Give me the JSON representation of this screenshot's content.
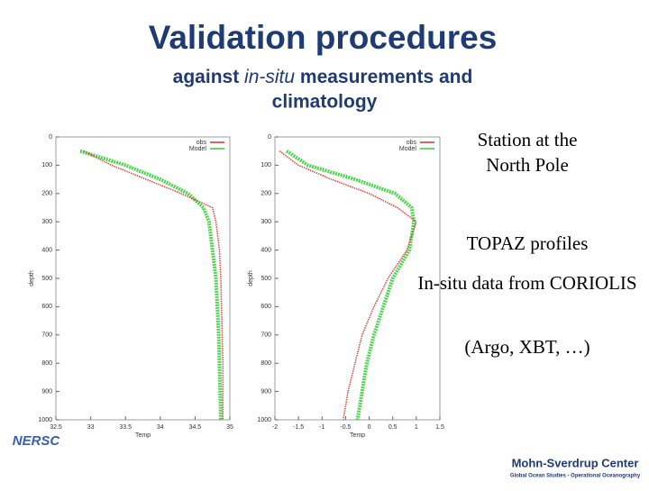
{
  "title": "Validation procedures",
  "subtitle": {
    "parts": [
      "against ",
      "in-situ",
      " measurements and"
    ],
    "line2": "climatology"
  },
  "notes": [
    "Station at the North Pole",
    "TOPAZ profiles",
    "In-situ data from CORIOLIS",
    "(Argo, XBT, …)"
  ],
  "logos": {
    "left": "NERSC",
    "right": "Mohn-Sverdrup Center",
    "right_sub": "Global Ocean Studies - Operational Oceanography"
  },
  "chart_data": [
    {
      "type": "line",
      "xlabel": "Temp",
      "ylabel": "depth",
      "depth": [
        50,
        100,
        150,
        200,
        250,
        300,
        400,
        500,
        600,
        700,
        800,
        900,
        1000
      ],
      "series": [
        {
          "name": "obs",
          "color": "#d03030",
          "values": [
            32.9,
            33.3,
            33.8,
            34.3,
            34.75,
            34.8,
            34.85,
            34.87,
            34.88,
            34.89,
            34.9,
            34.9,
            34.9
          ]
        },
        {
          "name": "Model",
          "color": "#33cc33",
          "values": [
            32.85,
            33.5,
            34.0,
            34.4,
            34.62,
            34.7,
            34.75,
            34.8,
            34.82,
            34.84,
            34.85,
            34.86,
            34.87
          ]
        }
      ],
      "xlim": [
        32.5,
        35
      ],
      "xticks": [
        32.5,
        33,
        33.5,
        34,
        34.5,
        35
      ],
      "ylim": [
        0,
        1000
      ],
      "yticks": [
        0,
        100,
        200,
        300,
        400,
        500,
        600,
        700,
        800,
        900,
        1000
      ],
      "legend": "upper right"
    },
    {
      "type": "line",
      "xlabel": "Temp",
      "ylabel": "depth",
      "depth": [
        50,
        100,
        150,
        200,
        250,
        300,
        400,
        500,
        600,
        700,
        800,
        900,
        1000
      ],
      "series": [
        {
          "name": "obs",
          "color": "#d03030",
          "values": [
            -1.9,
            -1.5,
            -0.8,
            0,
            0.6,
            1.0,
            0.8,
            0.4,
            0.1,
            -0.15,
            -0.3,
            -0.45,
            -0.55
          ]
        },
        {
          "name": "Model",
          "color": "#33cc33",
          "values": [
            -1.75,
            -1.3,
            -0.3,
            0.55,
            0.9,
            0.95,
            0.85,
            0.5,
            0.3,
            0.1,
            -0.05,
            -0.15,
            -0.25
          ]
        }
      ],
      "xlim": [
        -2,
        1.5
      ],
      "xticks": [
        -2,
        -1.5,
        -1,
        -0.5,
        0,
        0.5,
        1,
        1.5
      ],
      "ylim": [
        0,
        1000
      ],
      "yticks": [
        0,
        100,
        200,
        300,
        400,
        500,
        600,
        700,
        800,
        900,
        1000
      ],
      "legend": "upper right"
    }
  ]
}
